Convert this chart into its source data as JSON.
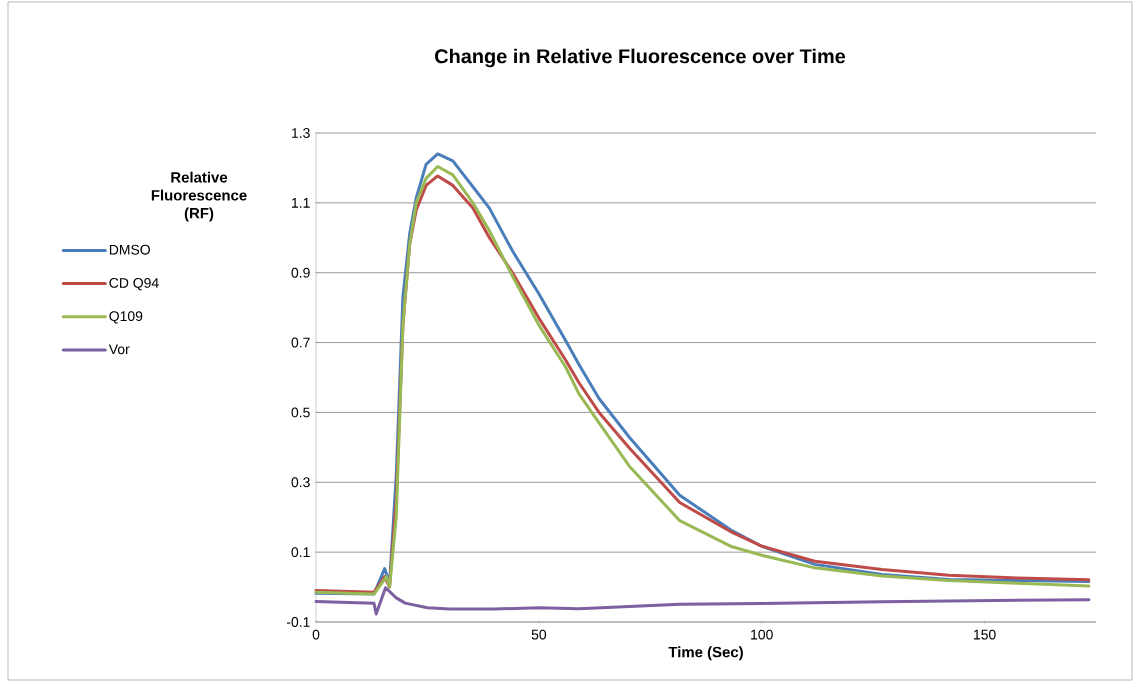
{
  "chart_data": {
    "type": "line",
    "title": "Change in Relative Fluorescence over Time",
    "xlabel": "Time (Sec)",
    "ylabel": "Relative Fluorescence (RF)",
    "xlim": [
      0,
      175
    ],
    "xticks": [
      0,
      50,
      100,
      150
    ],
    "ylim": [
      -0.1,
      1.3
    ],
    "yticks": [
      -0.1,
      0.1,
      0.3,
      0.5,
      0.7,
      0.9,
      1.1,
      1.3
    ],
    "grid": "y",
    "legend": "left",
    "marker": "none",
    "line_style": "solid",
    "series": [
      {
        "name": "DMSO",
        "color": "#4a7ebb",
        "x": [
          0,
          13,
          15.4,
          16.5,
          18,
          19.5,
          21,
          22.5,
          24.7,
          27.3,
          30.7,
          35.2,
          38.9,
          44.1,
          50,
          56,
          59,
          63.5,
          70.3,
          81.6,
          93,
          100,
          111.9,
          127,
          142,
          157.4,
          173.4
        ],
        "values": [
          -0.018,
          -0.02,
          0.053,
          0.01,
          0.317,
          0.83,
          1.01,
          1.115,
          1.21,
          1.24,
          1.22,
          1.146,
          1.085,
          0.962,
          0.84,
          0.706,
          0.637,
          0.54,
          0.429,
          0.263,
          0.164,
          0.117,
          0.065,
          0.036,
          0.022,
          0.019,
          0.016
        ]
      },
      {
        "name": "CD Q94",
        "color": "#be4b48",
        "x": [
          0,
          13,
          15.4,
          16.5,
          18,
          19.5,
          21,
          22.5,
          24.7,
          27.3,
          30.7,
          35.2,
          38.9,
          44.1,
          50,
          56,
          59,
          63.5,
          70.3,
          81.6,
          93,
          100,
          111.9,
          127,
          142,
          157.4,
          173.4
        ],
        "values": [
          -0.01,
          -0.015,
          0.03,
          0.0,
          0.25,
          0.75,
          0.98,
          1.08,
          1.15,
          1.177,
          1.15,
          1.085,
          1.0,
          0.9,
          0.77,
          0.65,
          0.585,
          0.5,
          0.398,
          0.242,
          0.159,
          0.117,
          0.074,
          0.05,
          0.034,
          0.026,
          0.021
        ]
      },
      {
        "name": "Q109",
        "color": "#98b954",
        "x": [
          0,
          13,
          15.8,
          16.5,
          18,
          19.5,
          21,
          22.5,
          24.7,
          27.3,
          30.7,
          35.2,
          38.9,
          44.1,
          50,
          56,
          59,
          63.5,
          70.3,
          81.6,
          93,
          100,
          111.9,
          127,
          142,
          157.4,
          173.4
        ],
        "values": [
          -0.015,
          -0.02,
          0.03,
          0.0,
          0.2,
          0.75,
          0.98,
          1.1,
          1.17,
          1.204,
          1.18,
          1.1,
          1.02,
          0.89,
          0.75,
          0.63,
          0.553,
          0.47,
          0.346,
          0.19,
          0.117,
          0.091,
          0.055,
          0.032,
          0.019,
          0.011,
          0.003
        ]
      },
      {
        "name": "Vor",
        "color": "#7d60a0",
        "x": [
          0,
          13,
          13.5,
          15.6,
          18,
          20,
          25,
          30,
          40,
          50,
          59,
          81.6,
          100,
          127,
          142,
          173.4
        ],
        "values": [
          -0.041,
          -0.046,
          -0.077,
          -0.002,
          -0.031,
          -0.046,
          -0.059,
          -0.063,
          -0.063,
          -0.059,
          -0.062,
          -0.049,
          -0.047,
          -0.042,
          -0.04,
          -0.036
        ]
      }
    ]
  }
}
